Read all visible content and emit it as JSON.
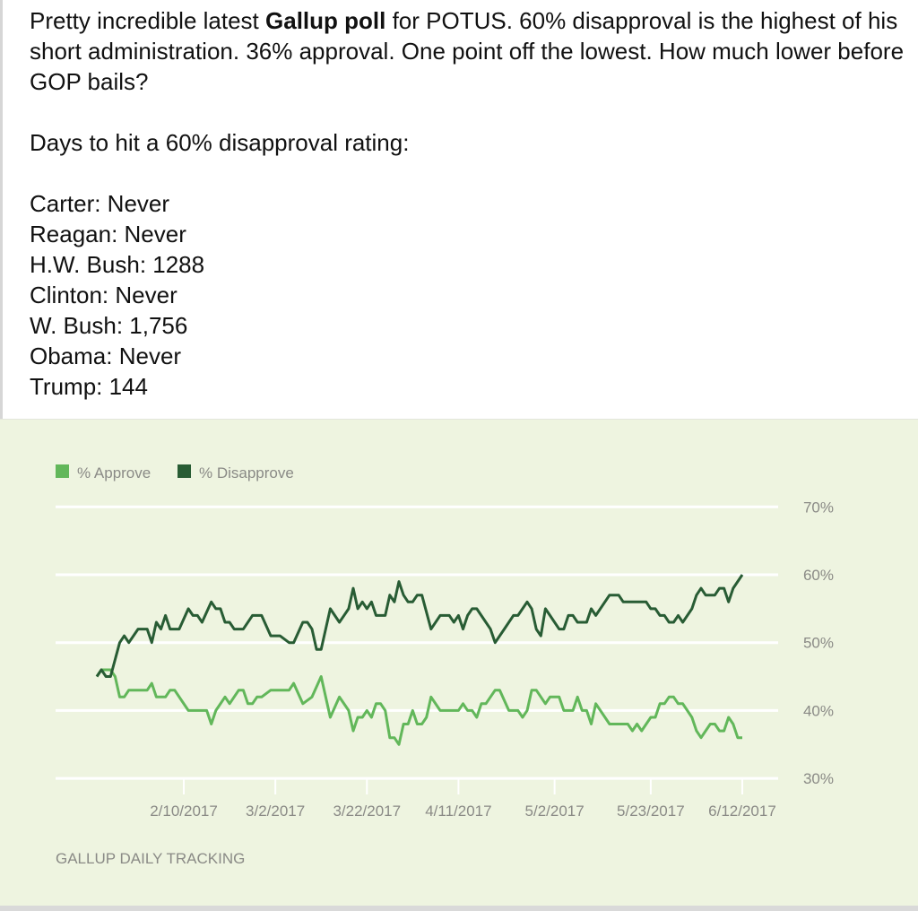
{
  "post": {
    "intro_before_bold": "Pretty incredible latest ",
    "intro_bold": "Gallup poll",
    "intro_after_bold": " for POTUS. 60% disapproval is the highest of his short administration.  36% approval. One point off the lowest. How much lower before GOP bails?",
    "question": "Days to hit a 60% disapproval rating:",
    "presidents": [
      "Carter: Never",
      "Reagan: Never",
      "H.W. Bush: 1288",
      "Clinton: Never",
      "W. Bush: 1,756",
      "Obama: Never",
      "Trump: 144"
    ]
  },
  "chart_data": {
    "type": "line",
    "title": "",
    "xlabel": "",
    "ylabel": "",
    "source": "GALLUP DAILY TRACKING",
    "legend_position": "top-left",
    "grid": true,
    "ylim": [
      30,
      70
    ],
    "yticks": [
      "70%",
      "60%",
      "50%",
      "40%",
      "30%"
    ],
    "ytick_values": [
      70,
      60,
      50,
      40,
      30
    ],
    "xlim": [
      "2017-01-22",
      "2017-06-12"
    ],
    "xticks": [
      "2/10/2017",
      "3/2/2017",
      "3/22/2017",
      "4/11/2017",
      "5/2/2017",
      "5/23/2017",
      "6/12/2017"
    ],
    "xtick_dates": [
      "2017-02-10",
      "2017-03-02",
      "2017-03-22",
      "2017-04-11",
      "2017-05-02",
      "2017-05-23",
      "2017-06-12"
    ],
    "background": "#eef4e0",
    "series": [
      {
        "name": "% Approve",
        "color": "#62b75a",
        "points": [
          [
            "2017-01-22",
            45
          ],
          [
            "2017-01-23",
            46
          ],
          [
            "2017-01-25",
            46
          ],
          [
            "2017-01-26",
            45
          ],
          [
            "2017-01-27",
            42
          ],
          [
            "2017-01-28",
            42
          ],
          [
            "2017-01-29",
            43
          ],
          [
            "2017-02-02",
            43
          ],
          [
            "2017-02-03",
            44
          ],
          [
            "2017-02-04",
            42
          ],
          [
            "2017-02-06",
            42
          ],
          [
            "2017-02-07",
            43
          ],
          [
            "2017-02-08",
            43
          ],
          [
            "2017-02-11",
            40
          ],
          [
            "2017-02-15",
            40
          ],
          [
            "2017-02-16",
            38
          ],
          [
            "2017-02-17",
            40
          ],
          [
            "2017-02-19",
            42
          ],
          [
            "2017-02-20",
            41
          ],
          [
            "2017-02-22",
            43
          ],
          [
            "2017-02-23",
            43
          ],
          [
            "2017-02-24",
            41
          ],
          [
            "2017-02-25",
            41
          ],
          [
            "2017-02-26",
            42
          ],
          [
            "2017-02-27",
            42
          ],
          [
            "2017-03-01",
            43
          ],
          [
            "2017-03-05",
            43
          ],
          [
            "2017-03-06",
            44
          ],
          [
            "2017-03-08",
            41
          ],
          [
            "2017-03-10",
            42
          ],
          [
            "2017-03-12",
            45
          ],
          [
            "2017-03-14",
            39
          ],
          [
            "2017-03-16",
            42
          ],
          [
            "2017-03-18",
            40
          ],
          [
            "2017-03-19",
            37
          ],
          [
            "2017-03-20",
            39
          ],
          [
            "2017-03-21",
            39
          ],
          [
            "2017-03-22",
            40
          ],
          [
            "2017-03-23",
            39
          ],
          [
            "2017-03-24",
            41
          ],
          [
            "2017-03-25",
            41
          ],
          [
            "2017-03-26",
            40
          ],
          [
            "2017-03-27",
            36
          ],
          [
            "2017-03-28",
            36
          ],
          [
            "2017-03-29",
            35
          ],
          [
            "2017-03-30",
            38
          ],
          [
            "2017-03-31",
            38
          ],
          [
            "2017-04-01",
            40
          ],
          [
            "2017-04-02",
            38
          ],
          [
            "2017-04-03",
            38
          ],
          [
            "2017-04-04",
            39
          ],
          [
            "2017-04-05",
            42
          ],
          [
            "2017-04-07",
            40
          ],
          [
            "2017-04-11",
            40
          ],
          [
            "2017-04-12",
            41
          ],
          [
            "2017-04-13",
            40
          ],
          [
            "2017-04-14",
            40
          ],
          [
            "2017-04-15",
            39
          ],
          [
            "2017-04-16",
            41
          ],
          [
            "2017-04-17",
            41
          ],
          [
            "2017-04-19",
            43
          ],
          [
            "2017-04-20",
            43
          ],
          [
            "2017-04-22",
            40
          ],
          [
            "2017-04-24",
            40
          ],
          [
            "2017-04-25",
            39
          ],
          [
            "2017-04-26",
            40
          ],
          [
            "2017-04-27",
            43
          ],
          [
            "2017-04-28",
            43
          ],
          [
            "2017-04-30",
            41
          ],
          [
            "2017-05-01",
            42
          ],
          [
            "2017-05-03",
            42
          ],
          [
            "2017-05-04",
            40
          ],
          [
            "2017-05-06",
            40
          ],
          [
            "2017-05-07",
            42
          ],
          [
            "2017-05-08",
            40
          ],
          [
            "2017-05-09",
            40
          ],
          [
            "2017-05-10",
            38
          ],
          [
            "2017-05-11",
            41
          ],
          [
            "2017-05-14",
            38
          ],
          [
            "2017-05-18",
            38
          ],
          [
            "2017-05-19",
            37
          ],
          [
            "2017-05-20",
            38
          ],
          [
            "2017-05-21",
            37
          ],
          [
            "2017-05-23",
            39
          ],
          [
            "2017-05-24",
            39
          ],
          [
            "2017-05-25",
            41
          ],
          [
            "2017-05-26",
            41
          ],
          [
            "2017-05-27",
            42
          ],
          [
            "2017-05-28",
            42
          ],
          [
            "2017-05-29",
            41
          ],
          [
            "2017-05-30",
            41
          ],
          [
            "2017-06-01",
            39
          ],
          [
            "2017-06-02",
            37
          ],
          [
            "2017-06-03",
            36
          ],
          [
            "2017-06-05",
            38
          ],
          [
            "2017-06-06",
            38
          ],
          [
            "2017-06-07",
            37
          ],
          [
            "2017-06-08",
            37
          ],
          [
            "2017-06-09",
            39
          ],
          [
            "2017-06-10",
            38
          ],
          [
            "2017-06-11",
            36
          ],
          [
            "2017-06-12",
            36
          ]
        ]
      },
      {
        "name": "% Disapprove",
        "color": "#285c34",
        "points": [
          [
            "2017-01-22",
            45
          ],
          [
            "2017-01-23",
            46
          ],
          [
            "2017-01-24",
            45
          ],
          [
            "2017-01-25",
            45
          ],
          [
            "2017-01-27",
            50
          ],
          [
            "2017-01-28",
            51
          ],
          [
            "2017-01-29",
            50
          ],
          [
            "2017-01-31",
            52
          ],
          [
            "2017-02-02",
            52
          ],
          [
            "2017-02-03",
            50
          ],
          [
            "2017-02-04",
            53
          ],
          [
            "2017-02-05",
            52
          ],
          [
            "2017-02-06",
            54
          ],
          [
            "2017-02-07",
            52
          ],
          [
            "2017-02-09",
            52
          ],
          [
            "2017-02-11",
            55
          ],
          [
            "2017-02-12",
            54
          ],
          [
            "2017-02-13",
            54
          ],
          [
            "2017-02-14",
            53
          ],
          [
            "2017-02-16",
            56
          ],
          [
            "2017-02-17",
            55
          ],
          [
            "2017-02-18",
            55
          ],
          [
            "2017-02-19",
            53
          ],
          [
            "2017-02-20",
            53
          ],
          [
            "2017-02-21",
            52
          ],
          [
            "2017-02-23",
            52
          ],
          [
            "2017-02-25",
            54
          ],
          [
            "2017-02-27",
            54
          ],
          [
            "2017-03-01",
            51
          ],
          [
            "2017-03-03",
            51
          ],
          [
            "2017-03-05",
            50
          ],
          [
            "2017-03-06",
            50
          ],
          [
            "2017-03-08",
            53
          ],
          [
            "2017-03-09",
            53
          ],
          [
            "2017-03-10",
            52
          ],
          [
            "2017-03-11",
            49
          ],
          [
            "2017-03-12",
            49
          ],
          [
            "2017-03-14",
            55
          ],
          [
            "2017-03-16",
            53
          ],
          [
            "2017-03-18",
            55
          ],
          [
            "2017-03-19",
            58
          ],
          [
            "2017-03-20",
            55
          ],
          [
            "2017-03-21",
            56
          ],
          [
            "2017-03-22",
            55
          ],
          [
            "2017-03-23",
            56
          ],
          [
            "2017-03-24",
            54
          ],
          [
            "2017-03-26",
            54
          ],
          [
            "2017-03-27",
            57
          ],
          [
            "2017-03-28",
            56
          ],
          [
            "2017-03-29",
            59
          ],
          [
            "2017-03-30",
            57
          ],
          [
            "2017-03-31",
            56
          ],
          [
            "2017-04-01",
            56
          ],
          [
            "2017-04-02",
            57
          ],
          [
            "2017-04-03",
            57
          ],
          [
            "2017-04-05",
            52
          ],
          [
            "2017-04-07",
            54
          ],
          [
            "2017-04-09",
            54
          ],
          [
            "2017-04-10",
            53
          ],
          [
            "2017-04-11",
            54
          ],
          [
            "2017-04-12",
            52
          ],
          [
            "2017-04-13",
            54
          ],
          [
            "2017-04-14",
            55
          ],
          [
            "2017-04-15",
            55
          ],
          [
            "2017-04-17",
            53
          ],
          [
            "2017-04-18",
            52
          ],
          [
            "2017-04-19",
            50
          ],
          [
            "2017-04-21",
            52
          ],
          [
            "2017-04-23",
            54
          ],
          [
            "2017-04-24",
            54
          ],
          [
            "2017-04-26",
            56
          ],
          [
            "2017-04-27",
            55
          ],
          [
            "2017-04-28",
            52
          ],
          [
            "2017-04-29",
            51
          ],
          [
            "2017-04-30",
            55
          ],
          [
            "2017-05-01",
            54
          ],
          [
            "2017-05-03",
            52
          ],
          [
            "2017-05-04",
            52
          ],
          [
            "2017-05-05",
            54
          ],
          [
            "2017-05-06",
            54
          ],
          [
            "2017-05-07",
            53
          ],
          [
            "2017-05-09",
            53
          ],
          [
            "2017-05-10",
            55
          ],
          [
            "2017-05-11",
            54
          ],
          [
            "2017-05-14",
            57
          ],
          [
            "2017-05-16",
            57
          ],
          [
            "2017-05-17",
            56
          ],
          [
            "2017-05-22",
            56
          ],
          [
            "2017-05-23",
            55
          ],
          [
            "2017-05-24",
            55
          ],
          [
            "2017-05-25",
            54
          ],
          [
            "2017-05-26",
            54
          ],
          [
            "2017-05-27",
            53
          ],
          [
            "2017-05-28",
            53
          ],
          [
            "2017-05-29",
            54
          ],
          [
            "2017-05-30",
            53
          ],
          [
            "2017-06-01",
            55
          ],
          [
            "2017-06-02",
            57
          ],
          [
            "2017-06-03",
            58
          ],
          [
            "2017-06-04",
            57
          ],
          [
            "2017-06-06",
            57
          ],
          [
            "2017-06-07",
            58
          ],
          [
            "2017-06-08",
            58
          ],
          [
            "2017-06-09",
            56
          ],
          [
            "2017-06-10",
            58
          ],
          [
            "2017-06-12",
            60
          ]
        ]
      }
    ]
  }
}
